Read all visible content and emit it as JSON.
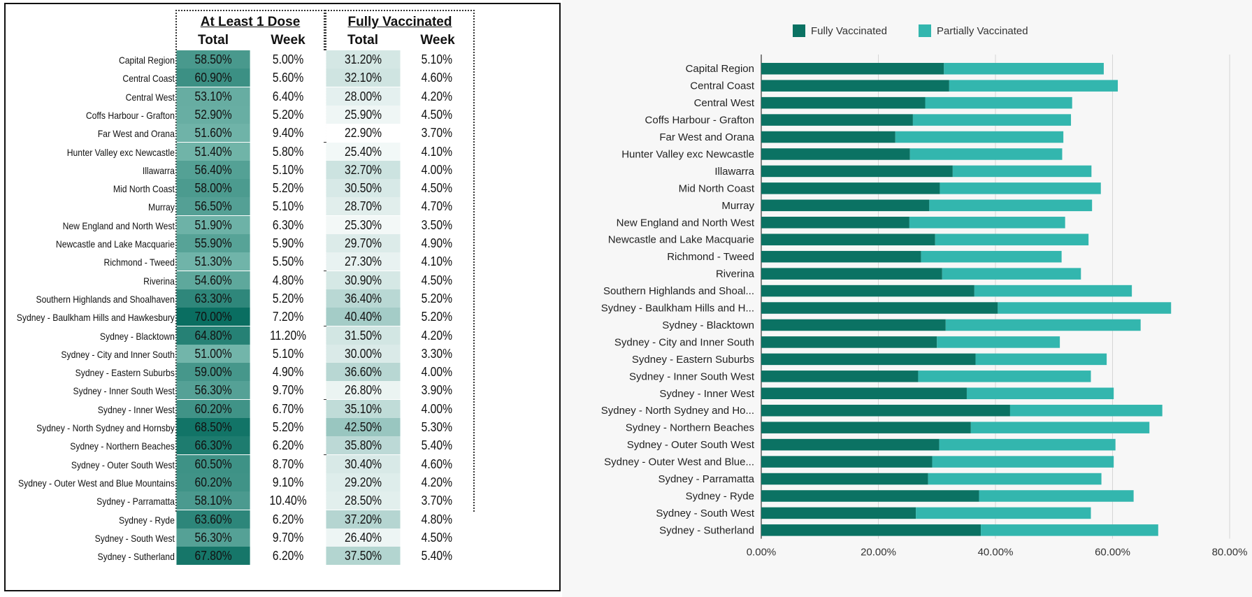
{
  "table": {
    "group1": "At Least 1 Dose",
    "group2": "Fully Vaccinated",
    "col_total": "Total",
    "col_week": "Week",
    "rows": [
      {
        "region": "Capital Region",
        "dose1_total": "58.50%",
        "dose1_week": "5.00%",
        "full_total": "31.20%",
        "full_week": "5.10%"
      },
      {
        "region": "Central Coast",
        "dose1_total": "60.90%",
        "dose1_week": "5.60%",
        "full_total": "32.10%",
        "full_week": "4.60%"
      },
      {
        "region": "Central West",
        "dose1_total": "53.10%",
        "dose1_week": "6.40%",
        "full_total": "28.00%",
        "full_week": "4.20%"
      },
      {
        "region": "Coffs Harbour - Grafton",
        "dose1_total": "52.90%",
        "dose1_week": "5.20%",
        "full_total": "25.90%",
        "full_week": "4.50%"
      },
      {
        "region": "Far West and Orana",
        "dose1_total": "51.60%",
        "dose1_week": "9.40%",
        "full_total": "22.90%",
        "full_week": "3.70%"
      },
      {
        "region": "Hunter Valley exc Newcastle",
        "dose1_total": "51.40%",
        "dose1_week": "5.80%",
        "full_total": "25.40%",
        "full_week": "4.10%"
      },
      {
        "region": "Illawarra",
        "dose1_total": "56.40%",
        "dose1_week": "5.10%",
        "full_total": "32.70%",
        "full_week": "4.00%"
      },
      {
        "region": "Mid North Coast",
        "dose1_total": "58.00%",
        "dose1_week": "5.20%",
        "full_total": "30.50%",
        "full_week": "4.50%"
      },
      {
        "region": "Murray",
        "dose1_total": "56.50%",
        "dose1_week": "5.10%",
        "full_total": "28.70%",
        "full_week": "4.70%"
      },
      {
        "region": "New England and North West",
        "dose1_total": "51.90%",
        "dose1_week": "6.30%",
        "full_total": "25.30%",
        "full_week": "3.50%"
      },
      {
        "region": "Newcastle and Lake Macquarie",
        "dose1_total": "55.90%",
        "dose1_week": "5.90%",
        "full_total": "29.70%",
        "full_week": "4.90%"
      },
      {
        "region": "Richmond - Tweed",
        "dose1_total": "51.30%",
        "dose1_week": "5.50%",
        "full_total": "27.30%",
        "full_week": "4.10%"
      },
      {
        "region": "Riverina",
        "dose1_total": "54.60%",
        "dose1_week": "4.80%",
        "full_total": "30.90%",
        "full_week": "4.50%"
      },
      {
        "region": "Southern Highlands and Shoalhaven",
        "dose1_total": "63.30%",
        "dose1_week": "5.20%",
        "full_total": "36.40%",
        "full_week": "5.20%"
      },
      {
        "region": "Sydney - Baulkham Hills and Hawkesbury",
        "dose1_total": "70.00%",
        "dose1_week": "7.20%",
        "full_total": "40.40%",
        "full_week": "5.20%"
      },
      {
        "region": "Sydney - Blacktown",
        "dose1_total": "64.80%",
        "dose1_week": "11.20%",
        "full_total": "31.50%",
        "full_week": "4.20%"
      },
      {
        "region": "Sydney - City and Inner South",
        "dose1_total": "51.00%",
        "dose1_week": "5.10%",
        "full_total": "30.00%",
        "full_week": "3.30%"
      },
      {
        "region": "Sydney - Eastern Suburbs",
        "dose1_total": "59.00%",
        "dose1_week": "4.90%",
        "full_total": "36.60%",
        "full_week": "4.00%"
      },
      {
        "region": "Sydney - Inner South West",
        "dose1_total": "56.30%",
        "dose1_week": "9.70%",
        "full_total": "26.80%",
        "full_week": "3.90%"
      },
      {
        "region": "Sydney - Inner West",
        "dose1_total": "60.20%",
        "dose1_week": "6.70%",
        "full_total": "35.10%",
        "full_week": "4.00%"
      },
      {
        "region": "Sydney - North Sydney and Hornsby",
        "dose1_total": "68.50%",
        "dose1_week": "5.20%",
        "full_total": "42.50%",
        "full_week": "5.30%"
      },
      {
        "region": "Sydney - Northern Beaches",
        "dose1_total": "66.30%",
        "dose1_week": "6.20%",
        "full_total": "35.80%",
        "full_week": "5.40%"
      },
      {
        "region": "Sydney - Outer South West",
        "dose1_total": "60.50%",
        "dose1_week": "8.70%",
        "full_total": "30.40%",
        "full_week": "4.60%"
      },
      {
        "region": "Sydney - Outer West and Blue Mountains",
        "dose1_total": "60.20%",
        "dose1_week": "9.10%",
        "full_total": "29.20%",
        "full_week": "4.20%"
      },
      {
        "region": "Sydney - Parramatta",
        "dose1_total": "58.10%",
        "dose1_week": "10.40%",
        "full_total": "28.50%",
        "full_week": "3.70%"
      },
      {
        "region": "Sydney - Ryde",
        "dose1_total": "63.60%",
        "dose1_week": "6.20%",
        "full_total": "37.20%",
        "full_week": "4.80%"
      },
      {
        "region": "Sydney - South West",
        "dose1_total": "56.30%",
        "dose1_week": "9.70%",
        "full_total": "26.40%",
        "full_week": "4.50%"
      },
      {
        "region": "Sydney - Sutherland",
        "dose1_total": "67.80%",
        "dose1_week": "6.20%",
        "full_total": "37.50%",
        "full_week": "5.40%"
      }
    ]
  },
  "colors": {
    "fully": "#0b7263",
    "partially": "#33b6ae",
    "dose_heat_low": "#72b5aa",
    "dose_heat_high": "#0a6e61",
    "full_heat_low": "#ffffff",
    "full_heat_high": "#99c6c0"
  },
  "chart_data": {
    "type": "bar",
    "orientation": "horizontal",
    "stacked": true,
    "categories": [
      "Capital Region",
      "Central Coast",
      "Central West",
      "Coffs Harbour - Grafton",
      "Far West and Orana",
      "Hunter Valley exc Newcastle",
      "Illawarra",
      "Mid North Coast",
      "Murray",
      "New England and North West",
      "Newcastle and Lake Macquarie",
      "Richmond - Tweed",
      "Riverina",
      "Southern Highlands and Shoal...",
      "Sydney - Baulkham Hills and H...",
      "Sydney - Blacktown",
      "Sydney - City and Inner South",
      "Sydney - Eastern Suburbs",
      "Sydney - Inner South West",
      "Sydney - Inner West",
      "Sydney - North Sydney and Ho...",
      "Sydney - Northern Beaches",
      "Sydney - Outer South West",
      "Sydney - Outer West and Blue...",
      "Sydney - Parramatta",
      "Sydney - Ryde",
      "Sydney - South West",
      "Sydney - Sutherland"
    ],
    "series": [
      {
        "name": "Fully Vaccinated",
        "values": [
          31.2,
          32.1,
          28.0,
          25.9,
          22.9,
          25.4,
          32.7,
          30.5,
          28.7,
          25.3,
          29.7,
          27.3,
          30.9,
          36.4,
          40.4,
          31.5,
          30.0,
          36.6,
          26.8,
          35.1,
          42.5,
          35.8,
          30.4,
          29.2,
          28.5,
          37.2,
          26.4,
          37.5
        ]
      },
      {
        "name": "Partially Vaccinated",
        "values": [
          27.3,
          28.8,
          25.1,
          27.0,
          28.7,
          26.0,
          23.7,
          27.5,
          27.8,
          26.6,
          26.2,
          24.0,
          23.7,
          26.9,
          29.6,
          33.3,
          21.0,
          22.4,
          29.5,
          25.1,
          26.0,
          30.5,
          30.1,
          31.0,
          29.6,
          26.4,
          29.9,
          30.3
        ]
      }
    ],
    "xlim": [
      0,
      80
    ],
    "xticks": [
      "0.00%",
      "20.00%",
      "40.00%",
      "60.00%",
      "80.00%"
    ],
    "xtick_values": [
      0,
      20,
      40,
      60,
      80
    ],
    "legend_position": "top-center",
    "grid": true
  }
}
